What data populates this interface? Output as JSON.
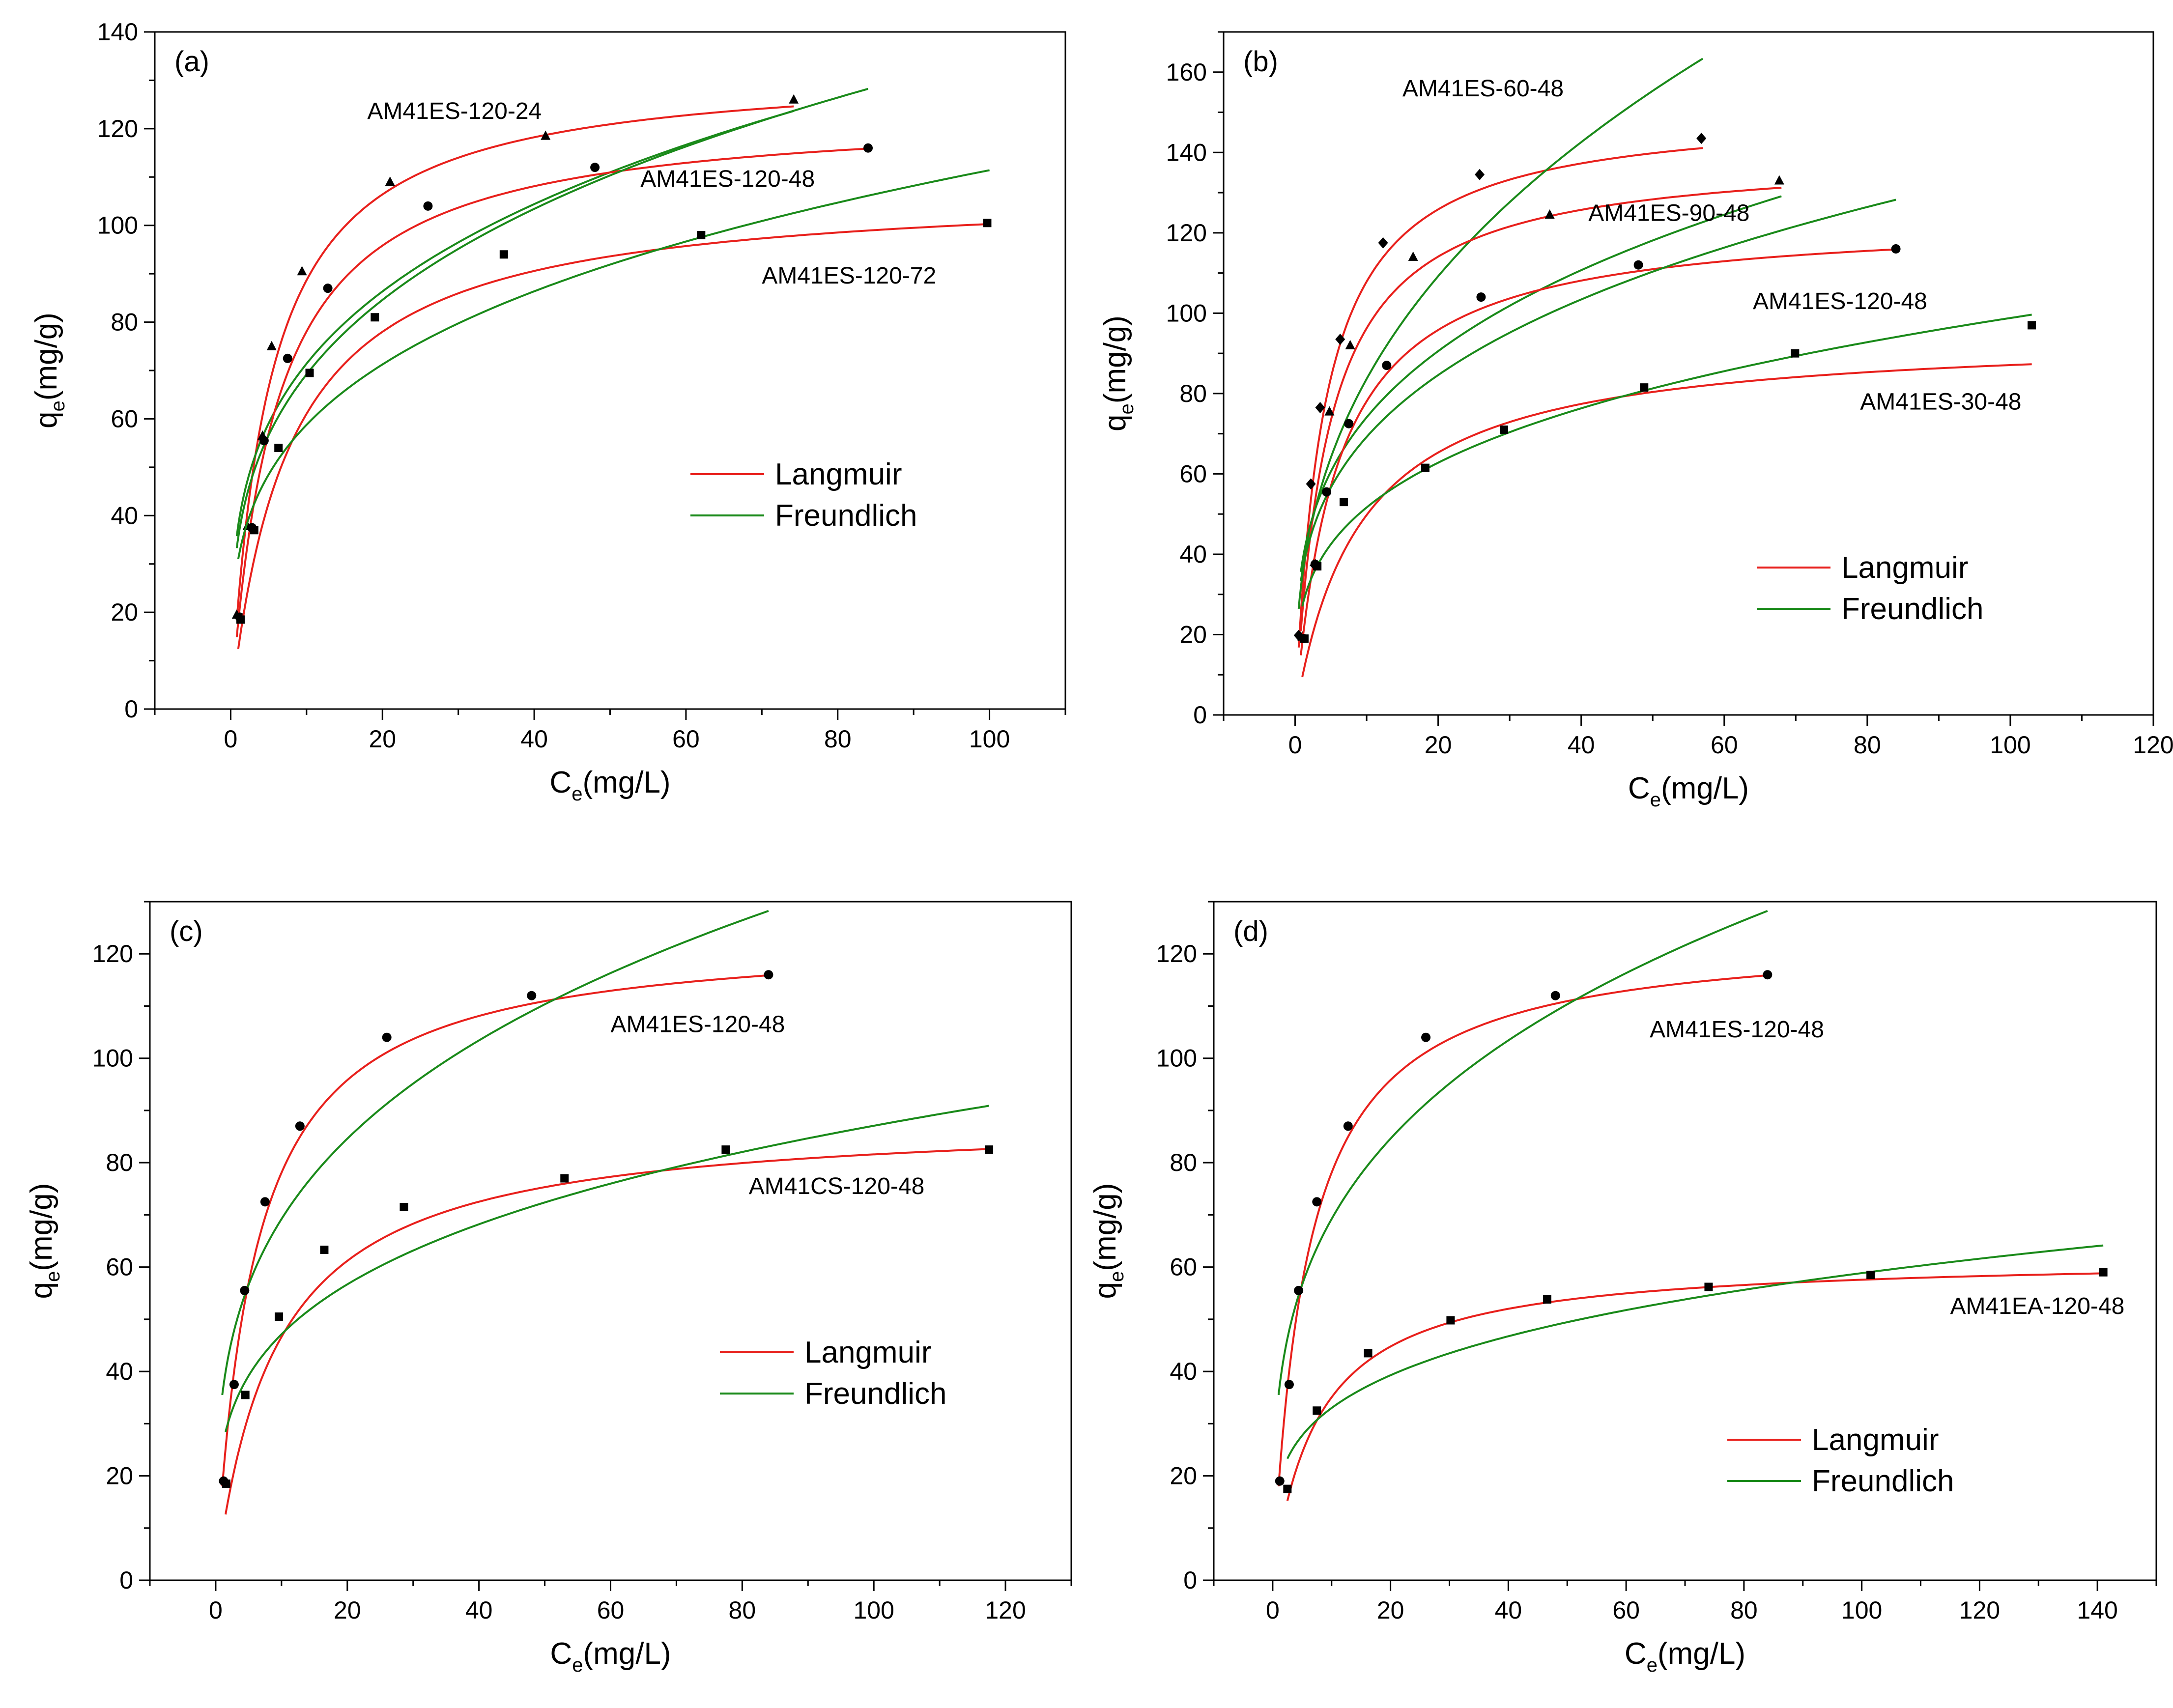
{
  "figure_title": "",
  "colors": {
    "langmuir": "#e8201c",
    "freundlich": "#1a8a1a",
    "axes": "#000000",
    "markers": "#000000"
  },
  "chart_data": [
    {
      "type": "scatter",
      "panel_label": "(a)",
      "xlabel": "C",
      "xlabel_sub": "e",
      "xlabel_unit": "(mg/L)",
      "ylabel": "q",
      "ylabel_sub": "e",
      "ylabel_unit": "(mg/g)",
      "xlim": [
        -10,
        110
      ],
      "ylim": [
        0,
        140
      ],
      "xticks": [
        0,
        20,
        40,
        60,
        80,
        100
      ],
      "yticks": [
        0,
        20,
        40,
        60,
        80,
        100,
        120,
        140
      ],
      "legend": {
        "position": "center-right",
        "entries": [
          {
            "label": "Langmuir",
            "model": "langmuir"
          },
          {
            "label": "Freundlich",
            "model": "freundlich"
          }
        ]
      },
      "series": [
        {
          "name": "AM41ES-120-24",
          "marker": "triangle",
          "label_at": [
            18,
            122
          ],
          "x": [
            0.8,
            2.2,
            4.2,
            5.4,
            9.4,
            21,
            41.5,
            74.2
          ],
          "y": [
            19.5,
            37.8,
            56.5,
            75,
            90.5,
            109,
            118.5,
            126
          ],
          "langmuir": {
            "qm": 133,
            "kl": 0.2
          },
          "freundlich": {
            "kf": 38,
            "n": 3.65
          },
          "fit_range": [
            0.8,
            74.2
          ]
        },
        {
          "name": "AM41ES-120-48",
          "marker": "circle",
          "label_at": [
            54,
            108
          ],
          "x": [
            1.2,
            2.8,
            4.4,
            7.5,
            12.8,
            26,
            48,
            84
          ],
          "y": [
            19,
            37.5,
            55.5,
            72.5,
            87,
            104,
            112,
            116
          ],
          "langmuir": {
            "qm": 124,
            "kl": 0.17
          },
          "freundlich": {
            "kf": 35.5,
            "n": 3.45
          },
          "fit_range": [
            0.8,
            84
          ]
        },
        {
          "name": "AM41ES-120-72",
          "marker": "square",
          "label_at": [
            70,
            88
          ],
          "x": [
            1.3,
            3.1,
            6.3,
            10.4,
            19,
            36,
            62,
            99.7
          ],
          "y": [
            18.5,
            37,
            54,
            69.5,
            81,
            94,
            98,
            100.5
          ],
          "langmuir": {
            "qm": 108,
            "kl": 0.13
          },
          "freundlich": {
            "kf": 31,
            "n": 3.6
          },
          "fit_range": [
            1,
            100
          ]
        }
      ]
    },
    {
      "type": "scatter",
      "panel_label": "(b)",
      "xlabel": "C",
      "xlabel_sub": "e",
      "xlabel_unit": "(mg/L)",
      "ylabel": "q",
      "ylabel_sub": "e",
      "ylabel_unit": "(mg/g)",
      "xlim": [
        -10,
        120
      ],
      "ylim": [
        0,
        170
      ],
      "xticks": [
        0,
        20,
        40,
        60,
        80,
        100,
        120
      ],
      "yticks": [
        0,
        20,
        40,
        60,
        80,
        100,
        120,
        140,
        160
      ],
      "legend": {
        "position": "bottom-right",
        "entries": [
          {
            "label": "Langmuir",
            "model": "langmuir"
          },
          {
            "label": "Freundlich",
            "model": "freundlich"
          }
        ]
      },
      "series": [
        {
          "name": "AM41ES-60-48",
          "marker": "diamond",
          "label_at": [
            15,
            154
          ],
          "x": [
            0.5,
            2.2,
            3.5,
            6.3,
            12.3,
            25.8,
            56.8
          ],
          "y": [
            19.8,
            57.5,
            76.5,
            93.5,
            117.5,
            134.5,
            143.5
          ],
          "langmuir": {
            "qm": 151,
            "kl": 0.25
          },
          "freundlich": {
            "kf": 34.5,
            "n": 2.6
          },
          "fit_range": [
            0.5,
            57
          ]
        },
        {
          "name": "AM41ES-90-48",
          "marker": "triangle",
          "label_at": [
            41,
            123
          ],
          "x": [
            1,
            2.7,
            4.8,
            7.7,
            16.5,
            35.6,
            67.7
          ],
          "y": [
            19.5,
            38,
            75.5,
            92,
            114,
            124.5,
            133
          ],
          "langmuir": {
            "qm": 140,
            "kl": 0.22
          },
          "freundlich": {
            "kf": 38,
            "n": 3.45
          },
          "fit_range": [
            0.8,
            68
          ]
        },
        {
          "name": "AM41ES-120-48",
          "marker": "circle",
          "label_at": [
            64,
            101
          ],
          "x": [
            1.2,
            2.8,
            4.4,
            7.5,
            12.8,
            26,
            48,
            84
          ],
          "y": [
            19,
            37.5,
            55.5,
            72.5,
            87,
            104,
            112,
            116
          ],
          "langmuir": {
            "qm": 124,
            "kl": 0.17
          },
          "freundlich": {
            "kf": 35.5,
            "n": 3.45
          },
          "fit_range": [
            0.8,
            84
          ]
        },
        {
          "name": "AM41ES-30-48",
          "marker": "square",
          "label_at": [
            79,
            76
          ],
          "x": [
            1.3,
            3.1,
            6.8,
            18.2,
            29.2,
            48.8,
            69.9,
            103
          ],
          "y": [
            19,
            37,
            53,
            61.5,
            71,
            81.5,
            90,
            97
          ],
          "langmuir": {
            "qm": 95,
            "kl": 0.11
          },
          "freundlich": {
            "kf": 27,
            "n": 3.55
          },
          "fit_range": [
            1,
            103
          ]
        }
      ]
    },
    {
      "type": "scatter",
      "panel_label": "(c)",
      "xlabel": "C",
      "xlabel_sub": "e",
      "xlabel_unit": "(mg/L)",
      "ylabel": "q",
      "ylabel_sub": "e",
      "ylabel_unit": "(mg/g)",
      "xlim": [
        -10,
        130
      ],
      "ylim": [
        0,
        130
      ],
      "xticks": [
        0,
        20,
        40,
        60,
        80,
        100,
        120
      ],
      "yticks": [
        0,
        20,
        40,
        60,
        80,
        100,
        120
      ],
      "legend": {
        "position": "center-right",
        "entries": [
          {
            "label": "Langmuir",
            "model": "langmuir"
          },
          {
            "label": "Freundlich",
            "model": "freundlich"
          }
        ]
      },
      "series": [
        {
          "name": "AM41ES-120-48",
          "marker": "circle",
          "label_at": [
            60,
            105
          ],
          "x": [
            1.2,
            2.8,
            4.4,
            7.5,
            12.8,
            26,
            48,
            84
          ],
          "y": [
            19,
            37.5,
            55.5,
            72.5,
            87,
            104,
            112,
            116
          ],
          "langmuir": {
            "qm": 124,
            "kl": 0.17
          },
          "freundlich": {
            "kf": 35.5,
            "n": 3.45
          },
          "fit_range": [
            1,
            84
          ]
        },
        {
          "name": "AM41CS-120-48",
          "marker": "square",
          "label_at": [
            81,
            74
          ],
          "x": [
            1.6,
            4.5,
            9.6,
            16.5,
            28.6,
            53,
            77.5,
            117.5
          ],
          "y": [
            18.5,
            35.5,
            50.5,
            63.3,
            71.5,
            77,
            82.5,
            82.5
          ],
          "langmuir": {
            "qm": 89,
            "kl": 0.11
          },
          "freundlich": {
            "kf": 25.5,
            "n": 3.75
          },
          "fit_range": [
            1.5,
            117.5
          ]
        }
      ]
    },
    {
      "type": "scatter",
      "panel_label": "(d)",
      "xlabel": "C",
      "xlabel_sub": "e",
      "xlabel_unit": "(mg/L)",
      "ylabel": "q",
      "ylabel_sub": "e",
      "ylabel_unit": "(mg/g)",
      "xlim": [
        -10,
        150
      ],
      "ylim": [
        0,
        130
      ],
      "xticks": [
        0,
        20,
        40,
        60,
        80,
        100,
        120,
        140
      ],
      "yticks": [
        0,
        20,
        40,
        60,
        80,
        100,
        120
      ],
      "legend": {
        "position": "bottom-center",
        "entries": [
          {
            "label": "Langmuir",
            "model": "langmuir"
          },
          {
            "label": "Freundlich",
            "model": "freundlich"
          }
        ]
      },
      "series": [
        {
          "name": "AM41ES-120-48",
          "marker": "circle",
          "label_at": [
            64,
            104
          ],
          "x": [
            1.2,
            2.8,
            4.4,
            7.5,
            12.8,
            26,
            48,
            84
          ],
          "y": [
            19,
            37.5,
            55.5,
            72.5,
            87,
            104,
            112,
            116
          ],
          "langmuir": {
            "qm": 124,
            "kl": 0.17
          },
          "freundlich": {
            "kf": 35.5,
            "n": 3.45
          },
          "fit_range": [
            1,
            84
          ]
        },
        {
          "name": "AM41EA-120-48",
          "marker": "square",
          "label_at": [
            115,
            51
          ],
          "x": [
            2.5,
            7.5,
            16.2,
            30.2,
            46.6,
            74,
            101.5,
            141
          ],
          "y": [
            17.5,
            32.5,
            43.5,
            49.8,
            53.8,
            56.2,
            58.5,
            59
          ],
          "langmuir": {
            "qm": 62,
            "kl": 0.13
          },
          "freundlich": {
            "kf": 18.5,
            "n": 3.98
          },
          "fit_range": [
            2.5,
            141
          ]
        }
      ]
    }
  ]
}
